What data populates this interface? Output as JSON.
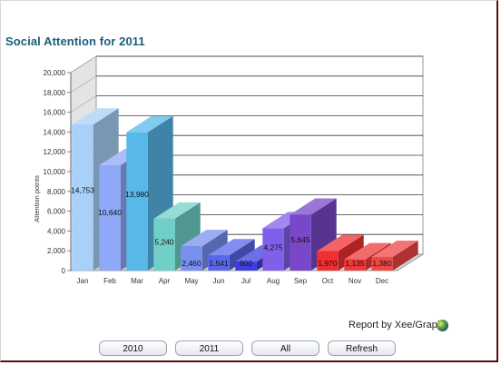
{
  "title": "Social Attention for 2011",
  "credit": "Report by Xee/Graph",
  "credit_logo": "xeegraph-logo-icon",
  "buttons": [
    "2010",
    "2011",
    "All",
    "Refresh"
  ],
  "chart_data": {
    "type": "bar",
    "title": "Social Attention for 2011",
    "xlabel": "",
    "ylabel": "Attention points",
    "categories": [
      "Jan",
      "Feb",
      "Mar",
      "Apr",
      "May",
      "Jun",
      "Jul",
      "Aug",
      "Sep",
      "Oct",
      "Nov",
      "Dec"
    ],
    "values": [
      14753,
      10640,
      13980,
      5240,
      2460,
      1541,
      900,
      4275,
      5645,
      1970,
      1135,
      1380
    ],
    "value_labels": [
      "14,753",
      "10,640",
      "13,980",
      "5,240",
      "2,460",
      "1,541",
      "900",
      "4,275",
      "5,645",
      "1,970",
      "1,135",
      "1,380"
    ],
    "yticks": [
      "0",
      "2,000",
      "4,000",
      "6,000",
      "8,000",
      "10,000",
      "12,000",
      "14,000",
      "16,000",
      "18,000",
      "20,000"
    ],
    "ylim": [
      0,
      20000
    ],
    "grid": true,
    "style": "3d",
    "colors": [
      "#a8d0f8",
      "#8fa8f8",
      "#58b8e8",
      "#70d0c8",
      "#7890f0",
      "#5a66ea",
      "#3e3ee0",
      "#8060e8",
      "#7848c8",
      "#f03030",
      "#f03a3a",
      "#f04646"
    ]
  }
}
